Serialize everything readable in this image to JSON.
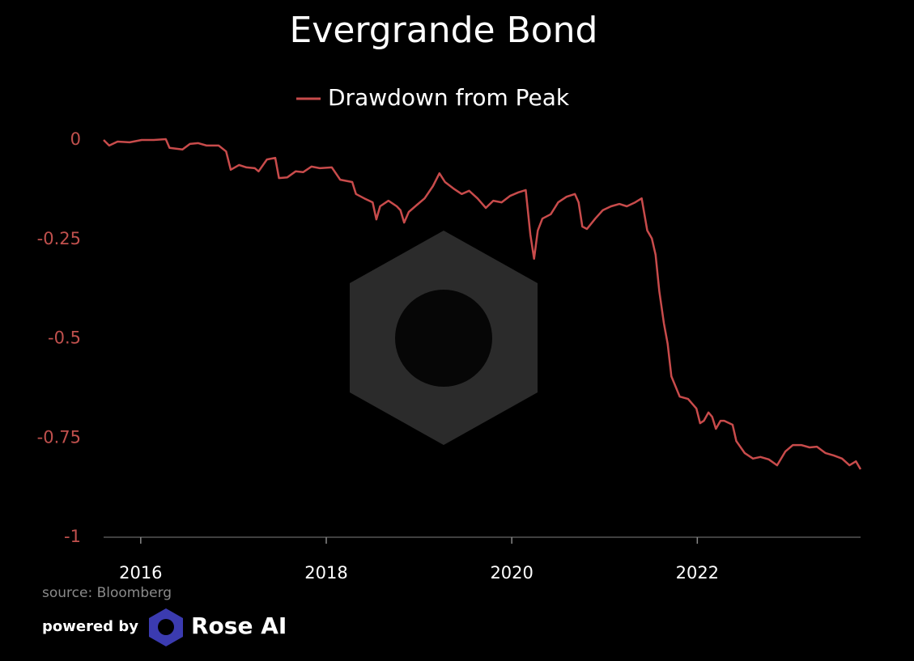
{
  "chart_data": {
    "type": "line",
    "title": "Evergrande Bond",
    "x": [
      2015.6,
      2015.66,
      2015.75,
      2015.88,
      2016.01,
      2016.14,
      2016.27,
      2016.31,
      2016.45,
      2016.53,
      2016.62,
      2016.71,
      2016.84,
      2016.92,
      2016.97,
      2017.06,
      2017.14,
      2017.23,
      2017.27,
      2017.36,
      2017.45,
      2017.49,
      2017.58,
      2017.67,
      2017.75,
      2017.84,
      2017.93,
      2018.06,
      2018.15,
      2018.28,
      2018.32,
      2018.41,
      2018.5,
      2018.54,
      2018.58,
      2018.67,
      2018.76,
      2018.8,
      2018.84,
      2018.89,
      2018.98,
      2019.06,
      2019.15,
      2019.22,
      2019.28,
      2019.37,
      2019.46,
      2019.54,
      2019.63,
      2019.72,
      2019.8,
      2019.89,
      2019.98,
      2020.07,
      2020.15,
      2020.2,
      2020.24,
      2020.28,
      2020.33,
      2020.42,
      2020.5,
      2020.59,
      2020.68,
      2020.72,
      2020.76,
      2020.81,
      2020.9,
      2020.98,
      2021.07,
      2021.16,
      2021.24,
      2021.33,
      2021.4,
      2021.46,
      2021.51,
      2021.55,
      2021.59,
      2021.64,
      2021.68,
      2021.72,
      2021.81,
      2021.9,
      2021.99,
      2022.03,
      2022.07,
      2022.12,
      2022.16,
      2022.2,
      2022.25,
      2022.29,
      2022.38,
      2022.42,
      2022.51,
      2022.6,
      2022.68,
      2022.77,
      2022.86,
      2022.95,
      2023.03,
      2023.12,
      2023.21,
      2023.29,
      2023.38,
      2023.47,
      2023.56,
      2023.64,
      2023.71,
      2023.76
    ],
    "series": [
      {
        "name": "Drawdown from Peak",
        "color": "#c84b4b",
        "values": [
          0,
          -0.014,
          -0.004,
          -0.006,
          0,
          0,
          0.002,
          -0.02,
          -0.024,
          -0.01,
          -0.008,
          -0.014,
          -0.014,
          -0.029,
          -0.075,
          -0.063,
          -0.069,
          -0.071,
          -0.079,
          -0.049,
          -0.045,
          -0.096,
          -0.094,
          -0.079,
          -0.081,
          -0.067,
          -0.071,
          -0.069,
          -0.1,
          -0.106,
          -0.136,
          -0.147,
          -0.157,
          -0.2,
          -0.167,
          -0.153,
          -0.167,
          -0.177,
          -0.208,
          -0.181,
          -0.163,
          -0.147,
          -0.116,
          -0.084,
          -0.106,
          -0.122,
          -0.136,
          -0.128,
          -0.147,
          -0.171,
          -0.153,
          -0.157,
          -0.141,
          -0.132,
          -0.126,
          -0.238,
          -0.299,
          -0.228,
          -0.198,
          -0.187,
          -0.157,
          -0.143,
          -0.136,
          -0.157,
          -0.218,
          -0.224,
          -0.198,
          -0.177,
          -0.167,
          -0.161,
          -0.167,
          -0.157,
          -0.147,
          -0.228,
          -0.248,
          -0.289,
          -0.381,
          -0.462,
          -0.513,
          -0.595,
          -0.646,
          -0.652,
          -0.676,
          -0.713,
          -0.707,
          -0.686,
          -0.697,
          -0.727,
          -0.707,
          -0.707,
          -0.717,
          -0.758,
          -0.788,
          -0.802,
          -0.798,
          -0.804,
          -0.819,
          -0.784,
          -0.768,
          -0.768,
          -0.774,
          -0.772,
          -0.788,
          -0.794,
          -0.802,
          -0.819,
          -0.809,
          -0.829
        ]
      }
    ],
    "xlim": [
      2015.6,
      2023.76
    ],
    "xticks": [
      2016,
      2018,
      2020,
      2022
    ],
    "ylim": [
      -1,
      0
    ],
    "yticks": [
      0,
      -0.25,
      -0.5,
      -0.75,
      -1
    ],
    "ytick_color": "#c0504d",
    "grid": false,
    "legend": "top"
  },
  "footer": {
    "source": "source: Bloomberg",
    "powered_by": "powered by",
    "brand": "Rose AI"
  }
}
